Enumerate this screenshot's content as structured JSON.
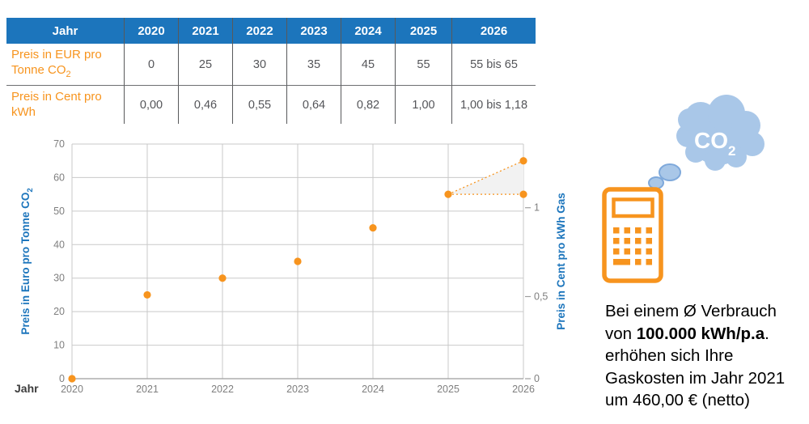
{
  "colors": {
    "brand_blue": "#1C75BC",
    "accent_orange": "#F7941E",
    "cloud_blue": "#A9C7E8",
    "grid_gray": "#C9C9C9",
    "tick_gray": "#7F7F7F",
    "table_border_gray": "#6D6E71",
    "cell_text_gray": "#545559",
    "uncertainty_fill": "#F2F2F2"
  },
  "table": {
    "header": [
      "Jahr",
      "2020",
      "2021",
      "2022",
      "2023",
      "2024",
      "2025",
      "2026"
    ],
    "row1": {
      "label": "Preis in EUR pro Tonne CO",
      "label_sub": "2",
      "cells": [
        "0",
        "25",
        "30",
        "35",
        "45",
        "55",
        "55 bis 65"
      ]
    },
    "row2": {
      "label": "Preis in Cent pro kWh",
      "cells": [
        "0,00",
        "0,46",
        "0,55",
        "0,64",
        "0,82",
        "1,00",
        "1,00 bis 1,18"
      ]
    }
  },
  "chart_data": {
    "type": "scatter",
    "xlabel": "Jahr",
    "ylabel_left": "Preis in Euro pro Tonne CO",
    "ylabel_left_sub": "2",
    "ylabel_right": "Preis in Cent pro kWh Gas",
    "x_ticks": [
      2020,
      2021,
      2022,
      2023,
      2024,
      2025,
      2026
    ],
    "xlim": [
      2020,
      2026
    ],
    "ylim_left": [
      0,
      70
    ],
    "y_ticks_left": [
      0,
      10,
      20,
      30,
      40,
      50,
      60,
      70
    ],
    "y_ticks_right": [
      {
        "label": "0",
        "at_left_value": 0
      },
      {
        "label": "0,5",
        "at_left_value": 24.5
      },
      {
        "label": "1",
        "at_left_value": 51
      }
    ],
    "grid": true,
    "legend": "none",
    "points_euro_per_tonne": [
      [
        2020,
        0
      ],
      [
        2021,
        25
      ],
      [
        2022,
        30
      ],
      [
        2023,
        35
      ],
      [
        2024,
        45
      ],
      [
        2025,
        55
      ],
      [
        2026,
        55
      ],
      [
        2026,
        65
      ]
    ],
    "uncertainty_2026": {
      "low": 55,
      "high": 65,
      "connector_from": [
        2025,
        55
      ],
      "style": "dotted",
      "fill": "#F2F2F2"
    }
  },
  "illustration": {
    "cloud_label": "CO",
    "cloud_label_sub": "2"
  },
  "annotation": {
    "line1": "Bei einem Ø Verbrauch",
    "line2_pre": "von ",
    "line2_bold": "100.000 kWh/p.a",
    "line2_post": ".",
    "line3": "erhöhen sich Ihre",
    "line4": "Gaskosten im Jahr 2021",
    "line5": "um 460,00 € (netto)"
  }
}
